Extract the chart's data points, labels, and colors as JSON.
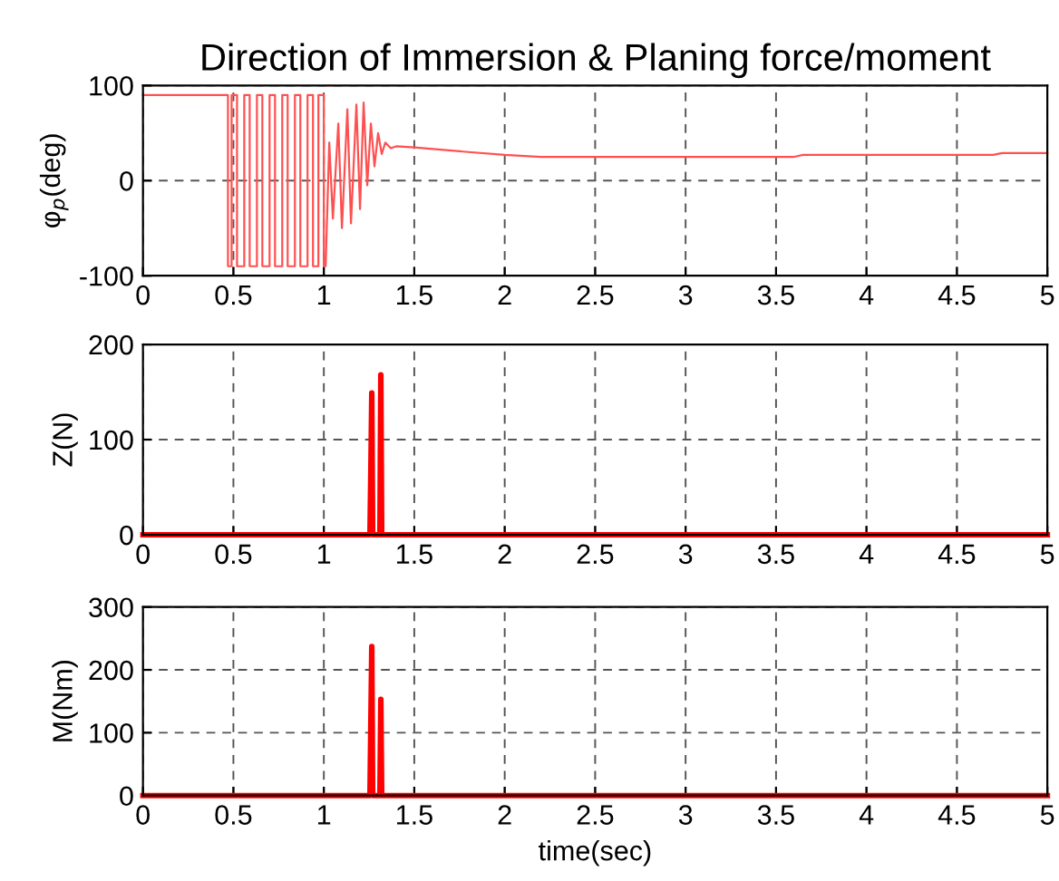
{
  "chart_data": [
    {
      "type": "line",
      "title": "Direction of Immersion & Planing force/moment",
      "ylabel": "φ$_{p}$(deg)",
      "xlim": [
        0,
        5
      ],
      "ylim": [
        -100,
        100
      ],
      "xticks": [
        0,
        0.5,
        1,
        1.5,
        2,
        2.5,
        3,
        3.5,
        4,
        4.5,
        5
      ],
      "yticks": [
        -100,
        0,
        100
      ],
      "grid": true,
      "marker": "none",
      "line_style": "solid",
      "series": [
        {
          "color": "#ff5050",
          "x": [
            0,
            0.47,
            0.47,
            0.49,
            0.49,
            0.52,
            0.52,
            0.56,
            0.56,
            0.59,
            0.59,
            0.63,
            0.63,
            0.66,
            0.66,
            0.7,
            0.7,
            0.73,
            0.73,
            0.77,
            0.77,
            0.8,
            0.8,
            0.84,
            0.84,
            0.87,
            0.87,
            0.91,
            0.91,
            0.94,
            0.94,
            0.97,
            0.97,
            1.0,
            1.0,
            1.01,
            1.03,
            1.05,
            1.08,
            1.1,
            1.13,
            1.15,
            1.18,
            1.2,
            1.22,
            1.24,
            1.26,
            1.28,
            1.3,
            1.32,
            1.34,
            1.37,
            1.4,
            1.5,
            1.8,
            2.0,
            2.2,
            3.6,
            3.65,
            4.7,
            4.75,
            5.0
          ],
          "values": [
            90,
            90,
            -90,
            -90,
            90,
            90,
            -90,
            -90,
            90,
            90,
            -90,
            -90,
            90,
            90,
            -90,
            -90,
            90,
            90,
            -90,
            -90,
            90,
            90,
            -90,
            -90,
            90,
            90,
            -90,
            -90,
            90,
            90,
            -90,
            -90,
            90,
            90,
            -90,
            -90,
            40,
            -40,
            60,
            -50,
            75,
            -45,
            80,
            -30,
            82,
            -5,
            60,
            15,
            50,
            28,
            40,
            34,
            36,
            35,
            30,
            27,
            25,
            25,
            27,
            27,
            29,
            29
          ]
        }
      ]
    },
    {
      "type": "line",
      "ylabel": "Z(N)",
      "xlim": [
        0,
        5
      ],
      "ylim": [
        0,
        200
      ],
      "xticks": [
        0,
        0.5,
        1,
        1.5,
        2,
        2.5,
        3,
        3.5,
        4,
        4.5,
        5
      ],
      "yticks": [
        0,
        100,
        200
      ],
      "grid": true,
      "marker": "none",
      "line_style": "solid",
      "series": [
        {
          "color": "#ff0000",
          "x": [
            0,
            1.255,
            1.26,
            1.265,
            1.27,
            1.31,
            1.315,
            1.32,
            5
          ],
          "values": [
            0,
            0,
            70,
            149,
            0,
            0,
            168,
            0,
            0
          ]
        }
      ]
    },
    {
      "type": "line",
      "ylabel": "M(Nm)",
      "xlabel": "time(sec)",
      "xlim": [
        0,
        5
      ],
      "ylim": [
        0,
        300
      ],
      "xticks": [
        0,
        0.5,
        1,
        1.5,
        2,
        2.5,
        3,
        3.5,
        4,
        4.5,
        5
      ],
      "yticks": [
        0,
        100,
        200,
        300
      ],
      "grid": true,
      "marker": "none",
      "line_style": "solid",
      "series": [
        {
          "color": "#ff0000",
          "x": [
            0,
            1.255,
            1.26,
            1.265,
            1.27,
            1.31,
            1.315,
            1.32,
            5
          ],
          "values": [
            0,
            0,
            120,
            237,
            0,
            0,
            153,
            0,
            0
          ]
        }
      ]
    }
  ]
}
